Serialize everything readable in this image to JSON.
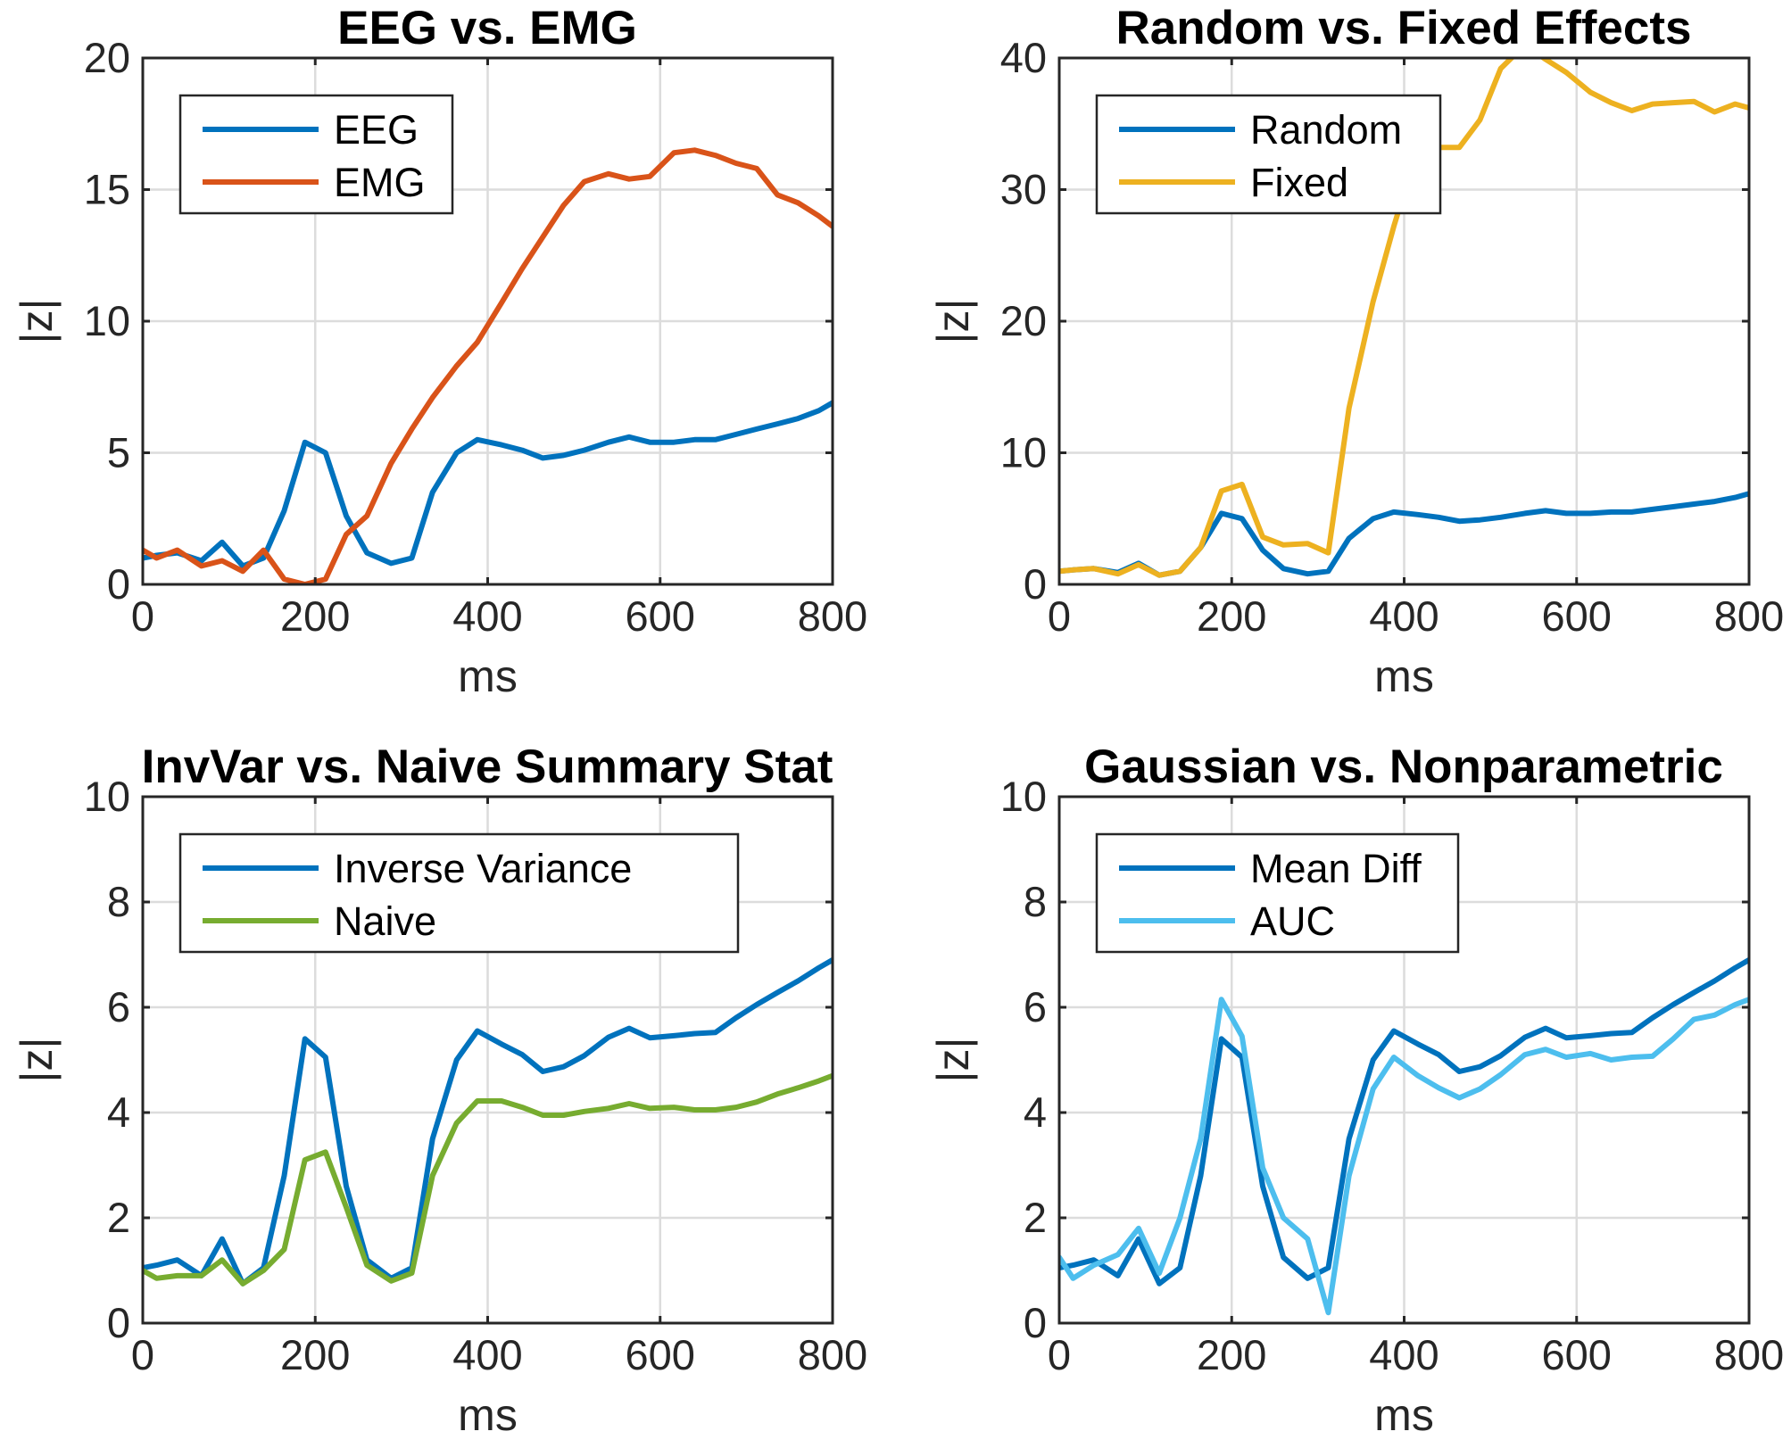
{
  "chart_data": [
    {
      "type": "line",
      "title": "EEG vs. EMG",
      "xlabel": "ms",
      "ylabel": "|z|",
      "xlim": [
        0,
        800
      ],
      "ylim": [
        0,
        20
      ],
      "xticks": [
        0,
        200,
        400,
        600,
        800
      ],
      "yticks": [
        0,
        5,
        10,
        15,
        20
      ],
      "grid": true,
      "legend": "top-left",
      "x": [
        0,
        16,
        40,
        68,
        92,
        116,
        140,
        164,
        188,
        212,
        236,
        260,
        288,
        312,
        336,
        364,
        388,
        416,
        440,
        464,
        488,
        512,
        540,
        564,
        588,
        616,
        640,
        664,
        688,
        712,
        736,
        760,
        784,
        800
      ],
      "series": [
        {
          "name": "EEG",
          "color": "#0072BD",
          "values": [
            1.0,
            1.1,
            1.2,
            0.9,
            1.6,
            0.7,
            1.0,
            2.8,
            5.4,
            5.0,
            2.6,
            1.2,
            0.8,
            1.0,
            3.5,
            5.0,
            5.5,
            5.3,
            5.1,
            4.8,
            4.9,
            5.1,
            5.4,
            5.6,
            5.4,
            5.4,
            5.5,
            5.5,
            5.7,
            5.9,
            6.1,
            6.3,
            6.6,
            6.9
          ]
        },
        {
          "name": "EMG",
          "color": "#D95319",
          "values": [
            1.3,
            1.0,
            1.3,
            0.7,
            0.9,
            0.5,
            1.3,
            0.2,
            0.0,
            0.2,
            1.9,
            2.6,
            4.6,
            5.9,
            7.1,
            8.3,
            9.2,
            10.7,
            12.0,
            13.2,
            14.4,
            15.3,
            15.6,
            15.4,
            15.5,
            16.4,
            16.5,
            16.3,
            16.0,
            15.8,
            14.8,
            14.5,
            14.0,
            13.6
          ]
        }
      ]
    },
    {
      "type": "line",
      "title": "Random vs. Fixed Effects",
      "xlabel": "ms",
      "ylabel": "|z|",
      "xlim": [
        0,
        800
      ],
      "ylim": [
        0,
        40
      ],
      "xticks": [
        0,
        200,
        400,
        600,
        800
      ],
      "yticks": [
        0,
        10,
        20,
        30,
        40
      ],
      "grid": true,
      "legend": "top-left",
      "x": [
        0,
        16,
        40,
        68,
        92,
        116,
        140,
        164,
        188,
        212,
        236,
        260,
        288,
        312,
        336,
        364,
        388,
        416,
        440,
        464,
        488,
        512,
        540,
        564,
        588,
        616,
        640,
        664,
        688,
        712,
        736,
        760,
        784,
        800
      ],
      "series": [
        {
          "name": "Random",
          "color": "#0072BD",
          "values": [
            1.0,
            1.1,
            1.2,
            0.9,
            1.6,
            0.7,
            1.0,
            2.8,
            5.4,
            5.0,
            2.6,
            1.2,
            0.8,
            1.0,
            3.5,
            5.0,
            5.5,
            5.3,
            5.1,
            4.8,
            4.9,
            5.1,
            5.4,
            5.6,
            5.4,
            5.4,
            5.5,
            5.5,
            5.7,
            5.9,
            6.1,
            6.3,
            6.6,
            6.9
          ]
        },
        {
          "name": "Fixed",
          "color": "#EDB120",
          "values": [
            1.0,
            1.1,
            1.2,
            0.8,
            1.5,
            0.7,
            1.0,
            2.8,
            7.1,
            7.6,
            3.6,
            3.0,
            3.1,
            2.4,
            13.4,
            21.5,
            27.2,
            33.2,
            33.2,
            33.2,
            35.3,
            39.2,
            41.0,
            39.9,
            38.9,
            37.4,
            36.6,
            36.0,
            36.5,
            36.6,
            36.7,
            35.9,
            36.5,
            36.2
          ]
        }
      ]
    },
    {
      "type": "line",
      "title": "InvVar vs. Naive Summary Stat",
      "xlabel": "ms",
      "ylabel": "|z|",
      "xlim": [
        0,
        800
      ],
      "ylim": [
        0,
        10
      ],
      "xticks": [
        0,
        200,
        400,
        600,
        800
      ],
      "yticks": [
        0,
        2,
        4,
        6,
        8,
        10
      ],
      "grid": true,
      "legend": "top-left",
      "x": [
        0,
        16,
        40,
        68,
        92,
        116,
        140,
        164,
        188,
        212,
        236,
        260,
        288,
        312,
        336,
        364,
        388,
        416,
        440,
        464,
        488,
        512,
        540,
        564,
        588,
        616,
        640,
        664,
        688,
        712,
        736,
        760,
        784,
        800
      ],
      "series": [
        {
          "name": "Inverse Variance",
          "color": "#0072BD",
          "values": [
            1.05,
            1.1,
            1.2,
            0.9,
            1.6,
            0.75,
            1.05,
            2.8,
            5.4,
            5.05,
            2.6,
            1.2,
            0.85,
            1.05,
            3.5,
            5.0,
            5.55,
            5.3,
            5.1,
            4.78,
            4.87,
            5.08,
            5.43,
            5.6,
            5.42,
            5.46,
            5.5,
            5.52,
            5.8,
            6.05,
            6.28,
            6.5,
            6.75,
            6.9
          ]
        },
        {
          "name": "Naive",
          "color": "#77AC30",
          "values": [
            1.0,
            0.85,
            0.9,
            0.9,
            1.2,
            0.75,
            1.0,
            1.4,
            3.1,
            3.25,
            2.2,
            1.1,
            0.8,
            0.95,
            2.8,
            3.8,
            4.22,
            4.22,
            4.1,
            3.95,
            3.95,
            4.02,
            4.08,
            4.17,
            4.08,
            4.1,
            4.05,
            4.05,
            4.1,
            4.2,
            4.35,
            4.47,
            4.6,
            4.7
          ]
        }
      ]
    },
    {
      "type": "line",
      "title": "Gaussian vs. Nonparametric",
      "xlabel": "ms",
      "ylabel": "|z|",
      "xlim": [
        0,
        800
      ],
      "ylim": [
        0,
        10
      ],
      "xticks": [
        0,
        200,
        400,
        600,
        800
      ],
      "yticks": [
        0,
        2,
        4,
        6,
        8,
        10
      ],
      "grid": true,
      "legend": "top-left",
      "x": [
        0,
        16,
        40,
        68,
        92,
        116,
        140,
        164,
        188,
        212,
        236,
        260,
        288,
        312,
        336,
        364,
        388,
        416,
        440,
        464,
        488,
        512,
        540,
        564,
        588,
        616,
        640,
        664,
        688,
        712,
        736,
        760,
        784,
        800
      ],
      "series": [
        {
          "name": "Mean Diff",
          "color": "#0072BD",
          "values": [
            1.05,
            1.1,
            1.2,
            0.9,
            1.6,
            0.75,
            1.05,
            2.8,
            5.4,
            5.05,
            2.6,
            1.25,
            0.85,
            1.05,
            3.5,
            5.0,
            5.55,
            5.3,
            5.1,
            4.78,
            4.87,
            5.08,
            5.43,
            5.6,
            5.42,
            5.46,
            5.5,
            5.52,
            5.8,
            6.05,
            6.28,
            6.5,
            6.75,
            6.9
          ]
        },
        {
          "name": "AUC",
          "color": "#4DBEEE",
          "values": [
            1.25,
            0.85,
            1.1,
            1.3,
            1.8,
            0.95,
            2.0,
            3.5,
            6.15,
            5.45,
            2.95,
            2.0,
            1.6,
            0.2,
            2.8,
            4.45,
            5.05,
            4.7,
            4.47,
            4.28,
            4.45,
            4.72,
            5.1,
            5.2,
            5.05,
            5.12,
            5.0,
            5.05,
            5.07,
            5.4,
            5.77,
            5.85,
            6.05,
            6.15
          ]
        }
      ]
    }
  ]
}
